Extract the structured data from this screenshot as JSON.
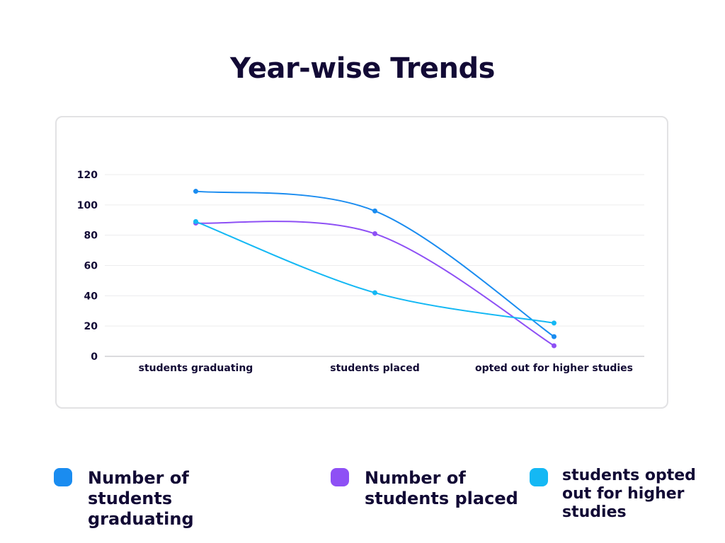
{
  "chart_data": {
    "type": "line",
    "title": "Year-wise Trends",
    "categories": [
      "students graduating",
      "students placed",
      "opted out for higher studies"
    ],
    "series": [
      {
        "name": "Number of students graduating",
        "values": [
          109,
          96,
          13
        ],
        "color": "#1a8cf0"
      },
      {
        "name": "Number of students placed",
        "values": [
          88,
          81,
          7
        ],
        "color": "#8e50f5"
      },
      {
        "name": "students opted out for higher studies",
        "values": [
          89,
          42,
          22
        ],
        "color": "#14b8f4"
      }
    ],
    "yticks": [
      0,
      20,
      40,
      60,
      80,
      100,
      120
    ],
    "ylim": [
      0,
      120
    ],
    "xlabel": "",
    "ylabel": "",
    "grid": true,
    "legend_position": "bottom"
  }
}
